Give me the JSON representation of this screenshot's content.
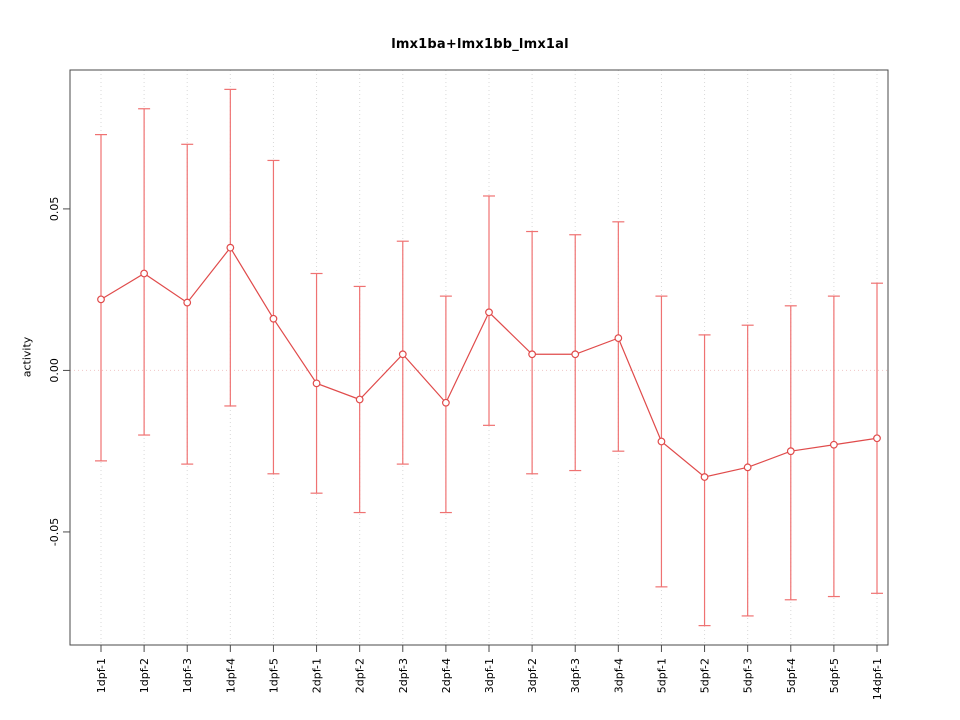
{
  "page": {
    "background": "#ffffff"
  },
  "chart_data": {
    "type": "line",
    "title": "lmx1ba+lmx1bb_lmx1al",
    "xlabel": "",
    "ylabel": "activity",
    "categories": [
      "1dpf-1",
      "1dpf-2",
      "1dpf-3",
      "1dpf-4",
      "1dpf-5",
      "2dpf-1",
      "2dpf-2",
      "2dpf-3",
      "2dpf-4",
      "3dpf-1",
      "3dpf-2",
      "3dpf-3",
      "3dpf-4",
      "5dpf-1",
      "5dpf-2",
      "5dpf-3",
      "5dpf-4",
      "5dpf-5",
      "14dpf-1"
    ],
    "series": [
      {
        "name": "activity",
        "values": [
          0.022,
          0.03,
          0.021,
          0.038,
          0.016,
          -0.004,
          -0.009,
          0.005,
          -0.01,
          0.018,
          0.005,
          0.005,
          0.01,
          -0.022,
          -0.033,
          -0.03,
          -0.025,
          -0.023,
          -0.021
        ],
        "error_high": [
          0.073,
          0.081,
          0.07,
          0.087,
          0.065,
          0.03,
          0.026,
          0.04,
          0.023,
          0.054,
          0.043,
          0.042,
          0.046,
          0.023,
          0.011,
          0.014,
          0.02,
          0.023,
          0.027
        ],
        "error_low": [
          -0.028,
          -0.02,
          -0.029,
          -0.011,
          -0.032,
          -0.038,
          -0.044,
          -0.029,
          -0.044,
          -0.017,
          -0.032,
          -0.031,
          -0.025,
          -0.067,
          -0.079,
          -0.076,
          -0.071,
          -0.07,
          -0.069
        ]
      }
    ],
    "ylim": [
      -0.085,
      0.093
    ],
    "yticks": [
      0.05,
      0,
      -0.05
    ],
    "ytick_labels": [
      "0.05",
      "0.00",
      "-0.05"
    ],
    "grid": "vertical-dotted-plus-zero-line",
    "legend": "none",
    "marker": "open-circle",
    "colors": {
      "point": "#e04b4b",
      "line": "#e04b4b",
      "error_bar": "#ef7272",
      "grid": "#d9d9d9",
      "zero_line": "#f0c6c6",
      "box": "#4a4a4a",
      "text": "#000000"
    }
  }
}
